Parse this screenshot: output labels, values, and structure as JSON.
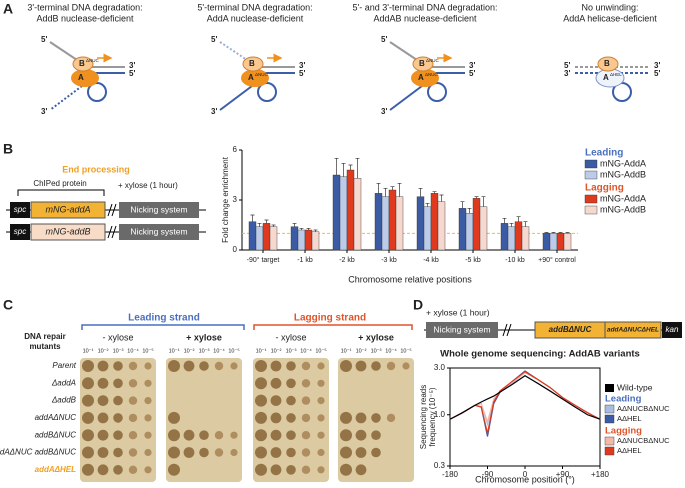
{
  "panel_labels": [
    "A",
    "B",
    "C",
    "D"
  ],
  "panel_a": {
    "diagrams": [
      {
        "title": [
          "3'-terminal DNA degradation:",
          "AddB nuclease-deficient"
        ],
        "top_label": "B",
        "top_sup": "ΔNUC",
        "bottom_label": "A",
        "ends": [
          "5'",
          "3'",
          "5'",
          "3'"
        ]
      },
      {
        "title": [
          "5'-terminal DNA degradation:",
          "AddA nuclease-deficient"
        ],
        "top_label": "B",
        "bottom_label": "A",
        "bottom_sup": "ΔNUC",
        "ends": [
          "5'",
          "3'",
          "5'",
          "3'"
        ]
      },
      {
        "title": [
          "5'- and 3'-terminal DNA degradation:",
          "AddAB nuclease-deficient"
        ],
        "top_label": "B",
        "top_sup": "ΔNUC",
        "bottom_label": "A",
        "bottom_sup": "ΔNUC",
        "ends": [
          "5'",
          "3'",
          "5'",
          "3'"
        ]
      },
      {
        "title": [
          "No unwinding:",
          "AddA helicase-deficient"
        ],
        "top_label": "B",
        "bottom_label": "A",
        "bottom_sup": "ΔHEL",
        "ends": [
          "5'",
          "3'",
          "3'",
          "5'"
        ]
      }
    ]
  },
  "panel_b": {
    "section_title": "End processing",
    "bracket_label": "ChIPed protein",
    "induction": "+ xylose (1 hour)",
    "constructs": [
      {
        "marker": "spc",
        "gene": "mNG-addA",
        "gene_color": "#f2b233",
        "system": "Nicking system"
      },
      {
        "marker": "spc",
        "gene": "mNG-addB",
        "gene_color": "#f9dcc8",
        "system": "Nicking system"
      }
    ]
  },
  "panel_c": {
    "leading": "Leading strand",
    "lagging": "Lagging strand",
    "leading_color": "#4a6fc0",
    "lagging_color": "#e0542a",
    "conditions": [
      "- xylose",
      "+ xylose",
      "- xylose",
      "+ xylose"
    ],
    "dilutions": [
      "10⁻¹",
      "10⁻²",
      "10⁻³",
      "10⁻⁴",
      "10⁻⁵"
    ],
    "row_header": [
      "DNA repair",
      "mutants"
    ],
    "rows": [
      {
        "label": "Parent"
      },
      {
        "label": "ΔaddA"
      },
      {
        "label": "ΔaddB"
      },
      {
        "label": "addAΔNUC"
      },
      {
        "label": "addBΔNUC"
      },
      {
        "label": "addAΔNUC addBΔNUC"
      },
      {
        "label": "addAΔHEL",
        "color": "#f0a020"
      }
    ]
  },
  "panel_d": {
    "induction": "+ xylose (1 hour)",
    "cassette": [
      "Nicking system",
      "addBΔNUC",
      "addAΔNUCΔHEL",
      "kan"
    ]
  },
  "chart_data": [
    {
      "type": "bar",
      "ylabel": "Fold change enrichment",
      "xlabel": "Chromosome relative positions",
      "categories": [
        "-90° target",
        "-1 kb",
        "-2 kb",
        "-3 kb",
        "-4 kb",
        "-5 kb",
        "-10 kb",
        "+90° control"
      ],
      "ylim": [
        0,
        6
      ],
      "yticks": [
        0,
        3,
        6
      ],
      "reference_line": {
        "value": 1,
        "color": "#f0c020"
      },
      "groups": [
        {
          "name": "Leading",
          "color": "#4a6fc0",
          "series": [
            {
              "name": "mNG-AddA",
              "color": "#3b5ba5",
              "values": [
                1.7,
                1.4,
                4.5,
                3.4,
                3.2,
                2.5,
                1.6,
                1.0
              ],
              "errors": [
                0.4,
                0.2,
                1.0,
                0.6,
                0.5,
                0.4,
                0.3,
                0.05
              ]
            },
            {
              "name": "mNG-AddB",
              "color": "#bccbe8",
              "values": [
                1.4,
                1.2,
                4.4,
                3.2,
                2.6,
                2.2,
                1.4,
                1.0
              ],
              "errors": [
                0.2,
                0.1,
                0.8,
                0.5,
                0.2,
                0.3,
                0.2,
                0.05
              ]
            }
          ]
        },
        {
          "name": "Lagging",
          "color": "#e0542a",
          "series": [
            {
              "name": "mNG-AddA",
              "color": "#e03a1e",
              "values": [
                1.6,
                1.2,
                4.8,
                3.6,
                3.4,
                3.1,
                1.7,
                1.0
              ],
              "errors": [
                0.2,
                0.1,
                0.3,
                0.2,
                0.1,
                0.1,
                0.3,
                0.05
              ]
            },
            {
              "name": "mNG-AddB",
              "color": "#f6d8cf",
              "values": [
                1.4,
                1.1,
                4.3,
                3.2,
                2.9,
                2.6,
                1.4,
                1.0
              ],
              "errors": [
                0.1,
                0.1,
                1.2,
                0.8,
                0.4,
                0.6,
                0.3,
                0.05
              ]
            }
          ]
        }
      ]
    },
    {
      "type": "line",
      "title": "Whole genome sequencing: AddAB variants",
      "ylabel": [
        "Sequencing reads",
        "frequency (10⁻⁵)"
      ],
      "xlabel": "Chromosome position (°)",
      "log_y": true,
      "xlim": [
        -180,
        180
      ],
      "ylim": [
        0.3,
        3
      ],
      "xticks": [
        -180,
        -90,
        0,
        {
          "value": 90,
          "label": "+90"
        },
        {
          "value": 180,
          "label": "+180"
        }
      ],
      "yticks": [
        0.3,
        {
          "value": 1,
          "label": "1.0"
        },
        {
          "value": 3,
          "label": "3.0"
        }
      ],
      "x": [
        -180,
        -150,
        -120,
        -105,
        -90,
        -75,
        -60,
        -30,
        0,
        30,
        60,
        90,
        120,
        150,
        180
      ],
      "series": [
        {
          "name": "Wild-type",
          "color": "#000000",
          "values": [
            0.9,
            1.05,
            1.25,
            1.35,
            1.45,
            1.55,
            1.7,
            2.05,
            2.5,
            2.1,
            1.75,
            1.45,
            1.2,
            1.0,
            0.9
          ]
        }
      ],
      "groups": [
        {
          "name": "Leading",
          "color": "#4a6fc0",
          "series": [
            {
              "name": "AΔNUCBΔNUC",
              "color": "#a9bde3",
              "values": [
                0.9,
                1.05,
                1.25,
                1.3,
                0.8,
                1.4,
                1.7,
                2.1,
                2.7,
                2.3,
                1.9,
                1.5,
                1.25,
                1.05,
                0.9
              ]
            },
            {
              "name": "AΔHEL",
              "color": "#3b5ba5",
              "values": [
                0.9,
                1.05,
                1.25,
                1.2,
                0.6,
                1.3,
                1.7,
                2.2,
                2.8,
                2.3,
                1.9,
                1.5,
                1.25,
                1.05,
                0.9
              ]
            }
          ]
        },
        {
          "name": "Lagging",
          "color": "#e0542a",
          "series": [
            {
              "name": "AΔNUCBΔNUC",
              "color": "#f4b8a8",
              "values": [
                0.9,
                1.05,
                1.25,
                1.3,
                0.85,
                1.45,
                1.75,
                2.15,
                2.7,
                2.3,
                1.9,
                1.5,
                1.25,
                1.05,
                0.9
              ]
            },
            {
              "name": "AΔHEL",
              "color": "#e03a1e",
              "values": [
                0.9,
                1.05,
                1.25,
                1.2,
                0.65,
                1.35,
                1.75,
                2.2,
                2.75,
                2.3,
                1.9,
                1.5,
                1.25,
                1.05,
                0.9
              ]
            }
          ]
        }
      ]
    }
  ]
}
